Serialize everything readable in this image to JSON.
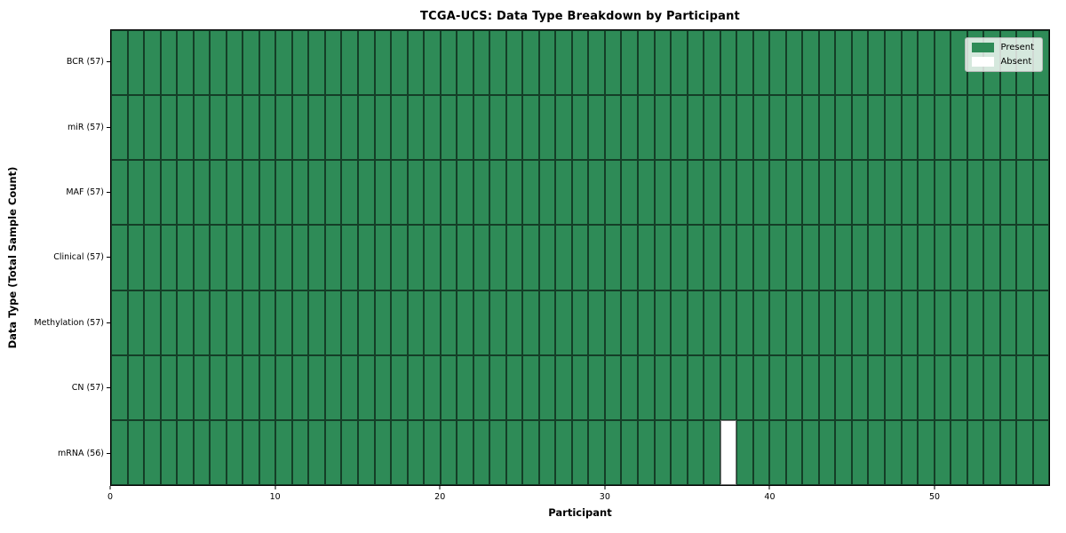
{
  "chart_data": {
    "type": "heatmap",
    "title": "TCGA-UCS: Data Type Breakdown by Participant",
    "xlabel": "Participant",
    "ylabel": "Data Type (Total Sample Count)",
    "n_participants": 57,
    "x_ticks": [
      0,
      10,
      20,
      30,
      40,
      50
    ],
    "x_range": [
      0,
      57
    ],
    "rows": [
      {
        "data_type": "BCR",
        "total": 57,
        "label": "BCR (57)",
        "absent_participants": []
      },
      {
        "data_type": "miR",
        "total": 57,
        "label": "miR (57)",
        "absent_participants": []
      },
      {
        "data_type": "MAF",
        "total": 57,
        "label": "MAF (57)",
        "absent_participants": []
      },
      {
        "data_type": "Clinical",
        "total": 57,
        "label": "Clinical (57)",
        "absent_participants": []
      },
      {
        "data_type": "Methylation",
        "total": 57,
        "label": "Methylation (57)",
        "absent_participants": []
      },
      {
        "data_type": "CN",
        "total": 57,
        "label": "CN (57)",
        "absent_participants": []
      },
      {
        "data_type": "mRNA",
        "total": 56,
        "label": "mRNA (56)",
        "absent_participants": [
          37
        ]
      }
    ],
    "legend": {
      "position": "upper-right",
      "entries": [
        {
          "label": "Present",
          "color": "#2e8b57"
        },
        {
          "label": "Absent",
          "color": "#ffffff"
        }
      ]
    },
    "colors": {
      "present": "#2e8b57",
      "absent": "#ffffff",
      "cell_border": "rgba(0,0,0,0.55)",
      "background": "#ffffff"
    }
  }
}
